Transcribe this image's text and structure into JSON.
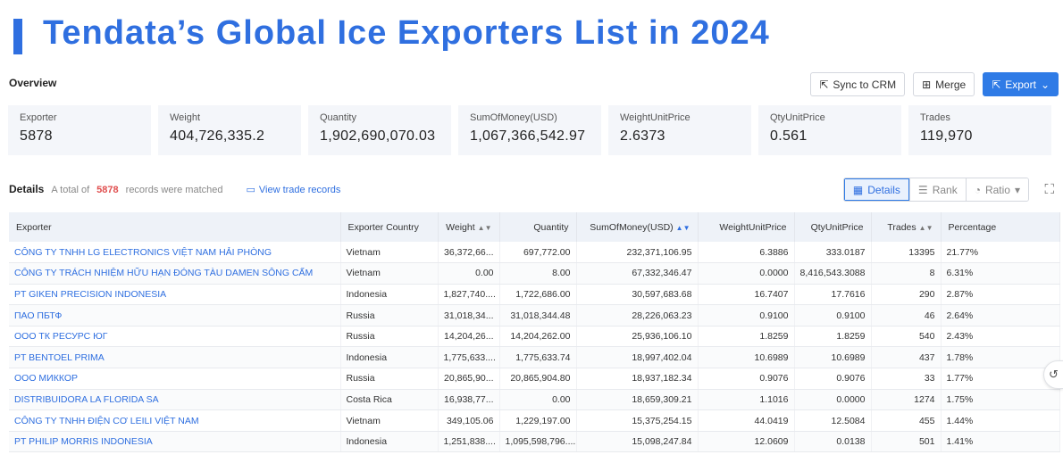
{
  "banner": {
    "title": "Tendata’s Global Ice Exporters List in 2024"
  },
  "overview": {
    "label": "Overview"
  },
  "actions": {
    "sync": {
      "icon": "external-edit-icon",
      "label": "Sync to CRM"
    },
    "merge": {
      "icon": "merge-grid-icon",
      "label": "Merge"
    },
    "export": {
      "icon": "export-icon",
      "label": "Export"
    }
  },
  "stats": [
    {
      "label": "Exporter",
      "value": "5878"
    },
    {
      "label": "Weight",
      "value": "404,726,335.2"
    },
    {
      "label": "Quantity",
      "value": "1,902,690,070.03"
    },
    {
      "label": "SumOfMoney(USD)",
      "value": "1,067,366,542.97"
    },
    {
      "label": "WeightUnitPrice",
      "value": "2.6373"
    },
    {
      "label": "QtyUnitPrice",
      "value": "0.561"
    },
    {
      "label": "Trades",
      "value": "119,970"
    }
  ],
  "details": {
    "label": "Details",
    "prefix": "A total of",
    "count": "5878",
    "suffix": "records were matched",
    "link": "View trade records"
  },
  "view_tabs": [
    {
      "label": "Details",
      "icon": "table-icon"
    },
    {
      "label": "Rank",
      "icon": "rank-icon"
    },
    {
      "label": "Ratio",
      "icon": "ratio-icon"
    }
  ],
  "table": {
    "headers": [
      "Exporter",
      "Exporter Country",
      "Weight",
      "Quantity",
      "SumOfMoney(USD)",
      "WeightUnitPrice",
      "QtyUnitPrice",
      "Trades",
      "Percentage"
    ],
    "rows": [
      [
        "CÔNG TY TNHH LG ELECTRONICS VIỆT NAM HẢI PHÒNG",
        "Vietnam",
        "36,372,66...",
        "697,772.00",
        "232,371,106.95",
        "6.3886",
        "333.0187",
        "13395",
        "21.77%"
      ],
      [
        "CÔNG TY TRÁCH NHIỆM HỮU HẠN ĐÓNG TÀU DAMEN SÔNG CẤM",
        "Vietnam",
        "0.00",
        "8.00",
        "67,332,346.47",
        "0.0000",
        "8,416,543.3088",
        "8",
        "6.31%"
      ],
      [
        "PT GIKEN PRECISION INDONESIA",
        "Indonesia",
        "1,827,740....",
        "1,722,686.00",
        "30,597,683.68",
        "16.7407",
        "17.7616",
        "290",
        "2.87%"
      ],
      [
        "ПАО ПБТФ",
        "Russia",
        "31,018,34...",
        "31,018,344.48",
        "28,226,063.23",
        "0.9100",
        "0.9100",
        "46",
        "2.64%"
      ],
      [
        "ООО ТК РЕСУРС ЮГ",
        "Russia",
        "14,204,26...",
        "14,204,262.00",
        "25,936,106.10",
        "1.8259",
        "1.8259",
        "540",
        "2.43%"
      ],
      [
        "PT BENTOEL PRIMA",
        "Indonesia",
        "1,775,633....",
        "1,775,633.74",
        "18,997,402.04",
        "10.6989",
        "10.6989",
        "437",
        "1.78%"
      ],
      [
        "ООО МИККОР",
        "Russia",
        "20,865,90...",
        "20,865,904.80",
        "18,937,182.34",
        "0.9076",
        "0.9076",
        "33",
        "1.77%"
      ],
      [
        "DISTRIBUIDORA LA FLORIDA SA",
        "Costa Rica",
        "16,938,77...",
        "0.00",
        "18,659,309.21",
        "1.1016",
        "0.0000",
        "1274",
        "1.75%"
      ],
      [
        "CÔNG TY TNHH ĐIỆN CƠ LEILI VIỆT NAM",
        "Vietnam",
        "349,105.06",
        "1,229,197.00",
        "15,375,254.15",
        "44.0419",
        "12.5084",
        "455",
        "1.44%"
      ],
      [
        "PT PHILIP MORRIS INDONESIA",
        "Indonesia",
        "1,251,838....",
        "1,095,598,796....",
        "15,098,247.84",
        "12.0609",
        "0.0138",
        "501",
        "1.41%"
      ]
    ]
  },
  "colors": {
    "accent": "#2f6fe0",
    "primary_button": "#2f7be6",
    "count": "#e04f4f"
  }
}
